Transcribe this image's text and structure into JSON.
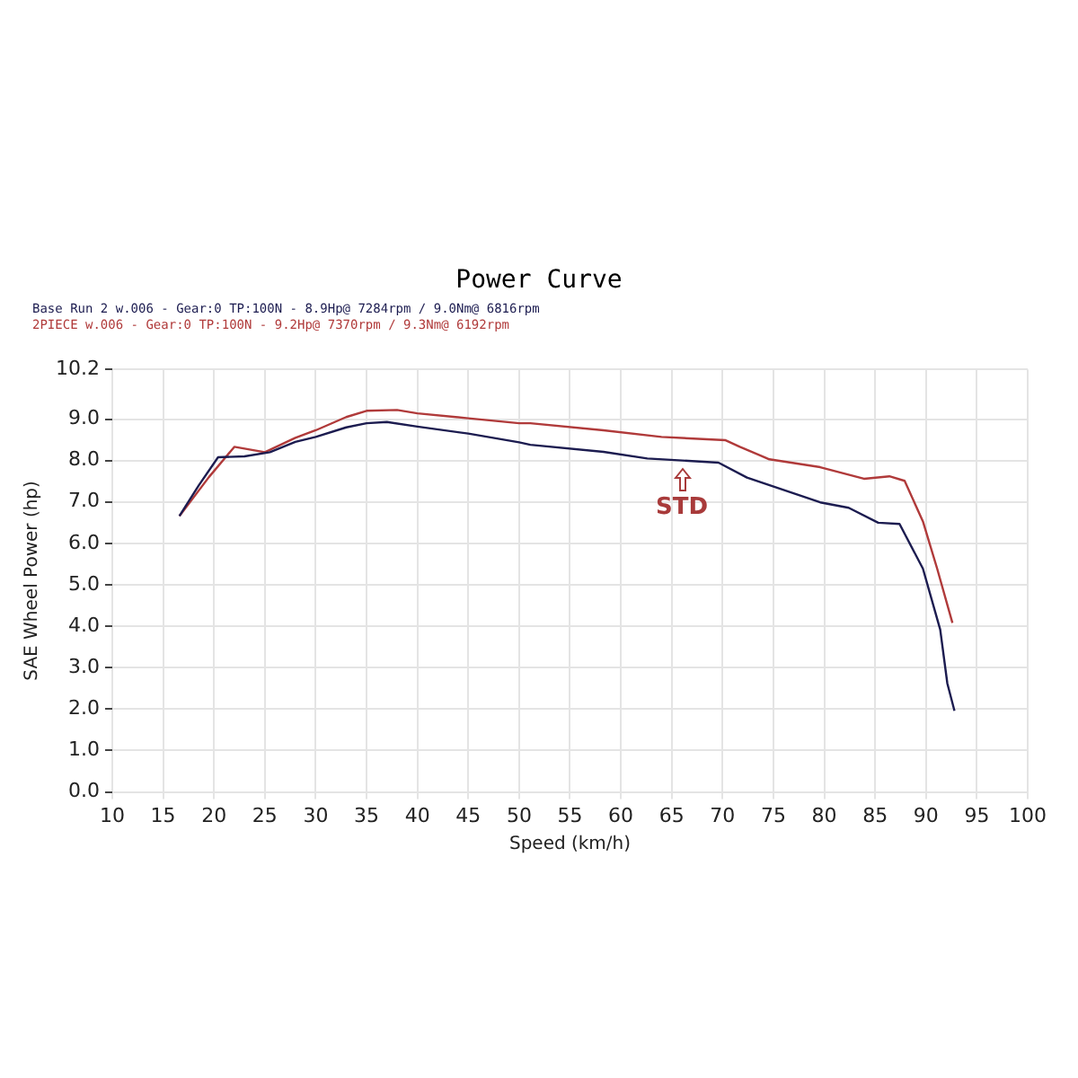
{
  "chart_data": {
    "type": "line",
    "title": "Power Curve",
    "xlabel": "Speed (km/h)",
    "ylabel": "SAE Wheel Power (hp)",
    "series": [
      {
        "color": "#1c1c50",
        "x": [
          16.6,
          18.5,
          20.4,
          23,
          25.5,
          28,
          30,
          33,
          35,
          37,
          40,
          45,
          50,
          51.1,
          58.3,
          62.6,
          69.6,
          72.4,
          79.6,
          82.4,
          85.3,
          87.4,
          89.7,
          91.4,
          92.1,
          92.8
        ],
        "values": [
          6.66,
          7.4,
          8.08,
          8.1,
          8.2,
          8.45,
          8.57,
          8.8,
          8.9,
          8.93,
          8.82,
          8.65,
          8.44,
          8.38,
          8.21,
          8.05,
          7.95,
          7.59,
          6.99,
          6.86,
          6.5,
          6.47,
          5.39,
          3.92,
          2.62,
          1.96
        ]
      },
      {
        "color": "#b03a3a",
        "x": [
          16.6,
          19.5,
          22,
          25,
          28,
          30,
          33,
          35,
          38,
          40,
          45,
          50,
          51.1,
          58.3,
          64,
          70.3,
          71.7,
          74.6,
          79.6,
          83.9,
          86.4,
          87.9,
          89.7,
          91.1,
          92.6
        ],
        "values": [
          6.66,
          7.6,
          8.33,
          8.2,
          8.55,
          8.73,
          9.05,
          9.2,
          9.22,
          9.14,
          9.02,
          8.9,
          8.9,
          8.73,
          8.57,
          8.49,
          8.33,
          8.03,
          7.84,
          7.56,
          7.62,
          7.51,
          6.53,
          5.39,
          4.08
        ]
      }
    ],
    "xlim": [
      10,
      100
    ],
    "xticks": [
      10,
      15,
      20,
      25,
      30,
      35,
      40,
      45,
      50,
      55,
      60,
      65,
      70,
      75,
      80,
      85,
      90,
      95,
      100
    ],
    "ylim": [
      0,
      10.2
    ],
    "yticks": [
      {
        "value": 0,
        "label": "0.0"
      },
      {
        "value": 1,
        "label": "1.0"
      },
      {
        "value": 2,
        "label": "2.0"
      },
      {
        "value": 3,
        "label": "3.0"
      },
      {
        "value": 4,
        "label": "4.0"
      },
      {
        "value": 5,
        "label": "5.0"
      },
      {
        "value": 6,
        "label": "6.0"
      },
      {
        "value": 7,
        "label": "7.0"
      },
      {
        "value": 8,
        "label": "8.0"
      },
      {
        "value": 9,
        "label": "9.0"
      },
      {
        "value": 10.2,
        "label": "10.2"
      }
    ],
    "grid": true,
    "legend": false,
    "marker": "none",
    "line_style": "solid",
    "annotations": [
      "Base Run 2 w.006 - Gear:0 TP:100N - 8.9Hp@ 7284rpm / 9.0Nm@ 6816rpm",
      "2PIECE w.006 - Gear:0 TP:100N - 9.2Hp@ 7370rpm / 9.3Nm@ 6192rpm",
      {
        "text": "STD",
        "x": 66,
        "y": 8.0
      }
    ]
  }
}
